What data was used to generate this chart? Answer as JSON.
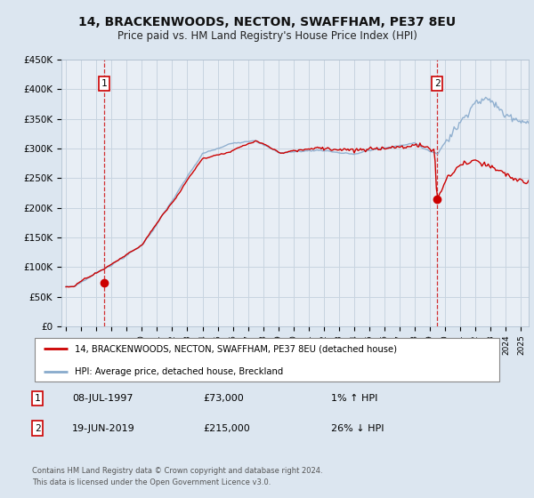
{
  "title": "14, BRACKENWOODS, NECTON, SWAFFHAM, PE37 8EU",
  "subtitle": "Price paid vs. HM Land Registry's House Price Index (HPI)",
  "legend_line1": "14, BRACKENWOODS, NECTON, SWAFFHAM, PE37 8EU (detached house)",
  "legend_line2": "HPI: Average price, detached house, Breckland",
  "sale1_date": "08-JUL-1997",
  "sale1_price": 73000,
  "sale1_pct": "1% ↑ HPI",
  "sale2_date": "19-JUN-2019",
  "sale2_price": 215000,
  "sale2_pct": "26% ↓ HPI",
  "footer": "Contains HM Land Registry data © Crown copyright and database right 2024.\nThis data is licensed under the Open Government Licence v3.0.",
  "red_color": "#cc0000",
  "blue_color": "#88aacc",
  "background_color": "#dce6f0",
  "plot_bg": "#e8eef5",
  "grid_color": "#c8d4e0",
  "ylim": [
    0,
    450000
  ],
  "xlim_start": 1994.7,
  "xlim_end": 2025.5,
  "sale1_year": 1997.52,
  "sale2_year": 2019.46
}
